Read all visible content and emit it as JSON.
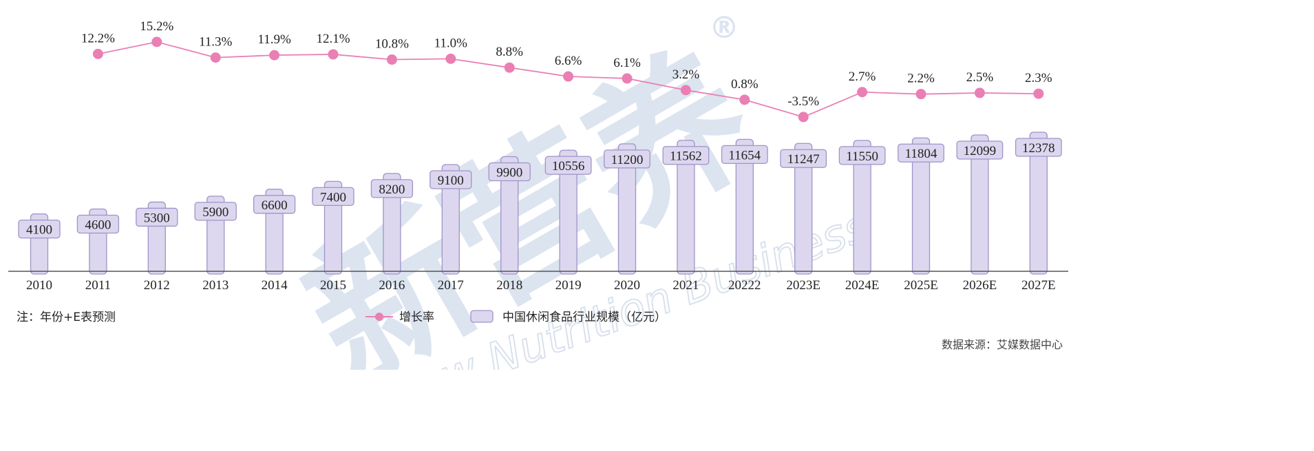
{
  "chart_data": {
    "type": "bar",
    "categories": [
      "2010",
      "2011",
      "2012",
      "2013",
      "2014",
      "2015",
      "2016",
      "2017",
      "2018",
      "2019",
      "2020",
      "2021",
      "20222",
      "2023E",
      "2024E",
      "2025E",
      "2026E",
      "2027E"
    ],
    "series": [
      {
        "name": "中国休闲食品行业规模（亿元）",
        "type": "bar",
        "values": [
          4100,
          4600,
          5300,
          5900,
          6600,
          7400,
          8200,
          9100,
          9900,
          10556,
          11200,
          11562,
          11654,
          11247,
          11550,
          11804,
          12099,
          12378
        ],
        "labels": [
          "4100",
          "4600",
          "5300",
          "5900",
          "6600",
          "7400",
          "8200",
          "9100",
          "9900",
          "10556",
          "11200",
          "11562",
          "11654",
          "11247",
          "11550",
          "11804",
          "12099",
          "12378"
        ],
        "color": "#dcd7ee"
      },
      {
        "name": "增长率",
        "type": "line",
        "values": [
          null,
          12.2,
          15.2,
          11.3,
          11.9,
          12.1,
          10.8,
          11.0,
          8.8,
          6.6,
          6.1,
          3.2,
          0.8,
          -3.5,
          2.7,
          2.2,
          2.5,
          2.3
        ],
        "labels": [
          "",
          "12.2%",
          "15.2%",
          "11.3%",
          "11.9%",
          "12.1%",
          "10.8%",
          "11.0%",
          "8.8%",
          "6.6%",
          "6.1%",
          "3.2%",
          "0.8%",
          "-3.5%",
          "2.7%",
          "2.2%",
          "2.5%",
          "2.3%"
        ],
        "color": "#ea7fb4"
      }
    ],
    "legend": [
      "增长率",
      "中国休闲食品行业规模（亿元）"
    ],
    "legend_position": "bottom-center",
    "grid": false
  },
  "footer": {
    "note": "注：年份+E表预测",
    "source": "数据来源：艾媒数据中心"
  },
  "watermark": {
    "text": "新营养",
    "text_en": "New Nutrition Business",
    "registered": "®"
  },
  "colors": {
    "bar_fill": "#dcd7ee",
    "bar_stroke": "#9f93c9",
    "line": "#ea7fb4",
    "axis": "#555555"
  }
}
